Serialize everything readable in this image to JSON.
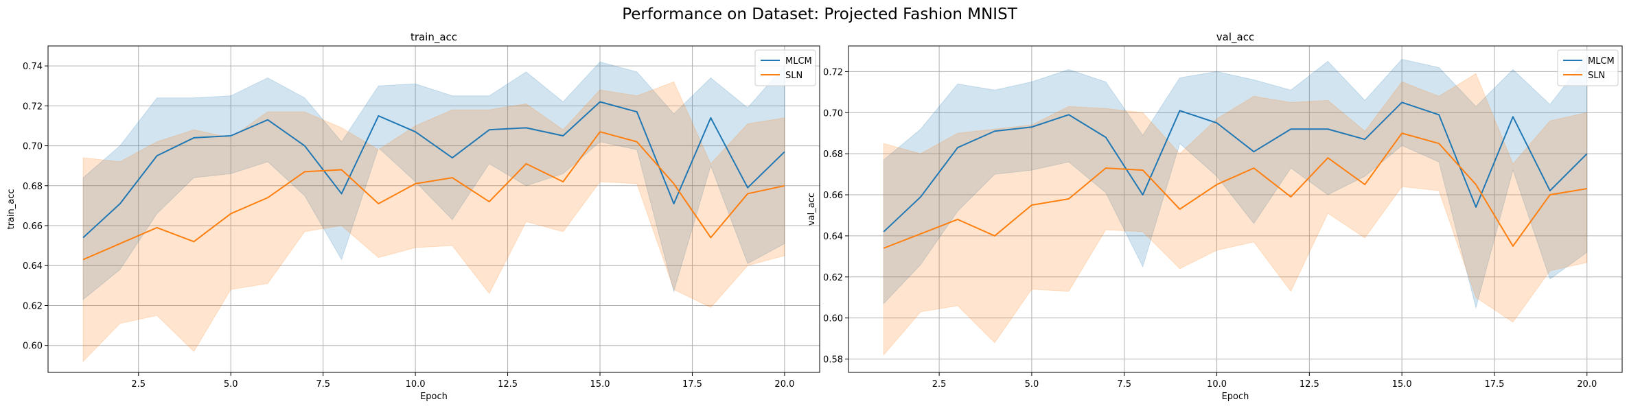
{
  "figure": {
    "title": "Performance on Dataset: Projected Fashion MNIST"
  },
  "colors": {
    "MLCM": "#1f77b4",
    "SLN": "#ff7f0e",
    "grid": "#b0b0b0"
  },
  "chart_data": [
    {
      "type": "line",
      "title": "train_acc",
      "xlabel": "Epoch",
      "ylabel": "train_acc",
      "xlim": [
        0.05,
        20.95
      ],
      "ylim": [
        0.5865,
        0.75
      ],
      "xticks": [
        2.5,
        5.0,
        7.5,
        10.0,
        12.5,
        15.0,
        17.5,
        20.0
      ],
      "xtick_labels": [
        "2.5",
        "5.0",
        "7.5",
        "10.0",
        "12.5",
        "15.0",
        "17.5",
        "20.0"
      ],
      "yticks": [
        0.6,
        0.62,
        0.64,
        0.66,
        0.68,
        0.7,
        0.72,
        0.74
      ],
      "ytick_labels": [
        "0.60",
        "0.62",
        "0.64",
        "0.66",
        "0.68",
        "0.70",
        "0.72",
        "0.74"
      ],
      "grid": true,
      "legend": "top-right",
      "x": [
        1,
        2,
        3,
        4,
        5,
        6,
        7,
        8,
        9,
        10,
        11,
        12,
        13,
        14,
        15,
        16,
        17,
        18,
        19,
        20
      ],
      "series": [
        {
          "name": "MLCM",
          "color": "MLCM",
          "values": [
            0.654,
            0.671,
            0.695,
            0.704,
            0.705,
            0.713,
            0.7,
            0.676,
            0.715,
            0.707,
            0.694,
            0.708,
            0.709,
            0.705,
            0.722,
            0.717,
            0.671,
            0.714,
            0.679,
            0.697
          ],
          "lower": [
            0.623,
            0.638,
            0.666,
            0.684,
            0.686,
            0.692,
            0.675,
            0.643,
            0.699,
            0.682,
            0.663,
            0.691,
            0.68,
            0.686,
            0.702,
            0.698,
            0.627,
            0.69,
            0.641,
            0.651
          ],
          "upper": [
            0.684,
            0.7,
            0.724,
            0.724,
            0.725,
            0.734,
            0.724,
            0.702,
            0.73,
            0.731,
            0.725,
            0.725,
            0.737,
            0.722,
            0.742,
            0.737,
            0.716,
            0.734,
            0.719,
            0.74
          ]
        },
        {
          "name": "SLN",
          "color": "SLN",
          "values": [
            0.643,
            0.651,
            0.659,
            0.652,
            0.666,
            0.674,
            0.687,
            0.688,
            0.671,
            0.681,
            0.684,
            0.672,
            0.691,
            0.682,
            0.707,
            0.702,
            0.681,
            0.654,
            0.676,
            0.68
          ],
          "lower": [
            0.592,
            0.611,
            0.615,
            0.597,
            0.628,
            0.631,
            0.657,
            0.66,
            0.644,
            0.649,
            0.65,
            0.626,
            0.662,
            0.657,
            0.682,
            0.681,
            0.628,
            0.619,
            0.64,
            0.645
          ],
          "upper": [
            0.694,
            0.692,
            0.702,
            0.708,
            0.704,
            0.717,
            0.717,
            0.709,
            0.698,
            0.71,
            0.718,
            0.718,
            0.721,
            0.708,
            0.728,
            0.725,
            0.732,
            0.691,
            0.711,
            0.714
          ]
        }
      ]
    },
    {
      "type": "line",
      "title": "val_acc",
      "xlabel": "Epoch",
      "ylabel": "val_acc",
      "xlim": [
        0.05,
        20.95
      ],
      "ylim": [
        0.5735,
        0.7325
      ],
      "xticks": [
        2.5,
        5.0,
        7.5,
        10.0,
        12.5,
        15.0,
        17.5,
        20.0
      ],
      "xtick_labels": [
        "2.5",
        "5.0",
        "7.5",
        "10.0",
        "12.5",
        "15.0",
        "17.5",
        "20.0"
      ],
      "yticks": [
        0.58,
        0.6,
        0.62,
        0.64,
        0.66,
        0.68,
        0.7,
        0.72
      ],
      "ytick_labels": [
        "0.58",
        "0.60",
        "0.62",
        "0.64",
        "0.66",
        "0.68",
        "0.70",
        "0.72"
      ],
      "grid": true,
      "legend": "top-right",
      "x": [
        1,
        2,
        3,
        4,
        5,
        6,
        7,
        8,
        9,
        10,
        11,
        12,
        13,
        14,
        15,
        16,
        17,
        18,
        19,
        20
      ],
      "series": [
        {
          "name": "MLCM",
          "color": "MLCM",
          "values": [
            0.642,
            0.659,
            0.683,
            0.691,
            0.693,
            0.699,
            0.688,
            0.66,
            0.701,
            0.695,
            0.681,
            0.692,
            0.692,
            0.687,
            0.705,
            0.699,
            0.654,
            0.698,
            0.662,
            0.68
          ],
          "lower": [
            0.607,
            0.626,
            0.652,
            0.67,
            0.672,
            0.676,
            0.661,
            0.625,
            0.685,
            0.669,
            0.646,
            0.673,
            0.66,
            0.669,
            0.684,
            0.676,
            0.605,
            0.672,
            0.619,
            0.632
          ],
          "upper": [
            0.677,
            0.692,
            0.714,
            0.711,
            0.715,
            0.721,
            0.715,
            0.689,
            0.717,
            0.72,
            0.716,
            0.711,
            0.725,
            0.706,
            0.726,
            0.722,
            0.703,
            0.721,
            0.704,
            0.727
          ]
        },
        {
          "name": "SLN",
          "color": "SLN",
          "values": [
            0.634,
            0.641,
            0.648,
            0.64,
            0.655,
            0.658,
            0.673,
            0.672,
            0.653,
            0.665,
            0.673,
            0.659,
            0.678,
            0.665,
            0.69,
            0.685,
            0.665,
            0.635,
            0.66,
            0.663
          ],
          "lower": [
            0.582,
            0.603,
            0.606,
            0.588,
            0.614,
            0.613,
            0.643,
            0.642,
            0.624,
            0.633,
            0.637,
            0.613,
            0.651,
            0.639,
            0.664,
            0.662,
            0.61,
            0.598,
            0.623,
            0.627
          ],
          "upper": [
            0.685,
            0.68,
            0.69,
            0.692,
            0.694,
            0.703,
            0.702,
            0.7,
            0.68,
            0.697,
            0.708,
            0.705,
            0.706,
            0.691,
            0.715,
            0.708,
            0.719,
            0.675,
            0.696,
            0.7
          ]
        }
      ]
    }
  ]
}
